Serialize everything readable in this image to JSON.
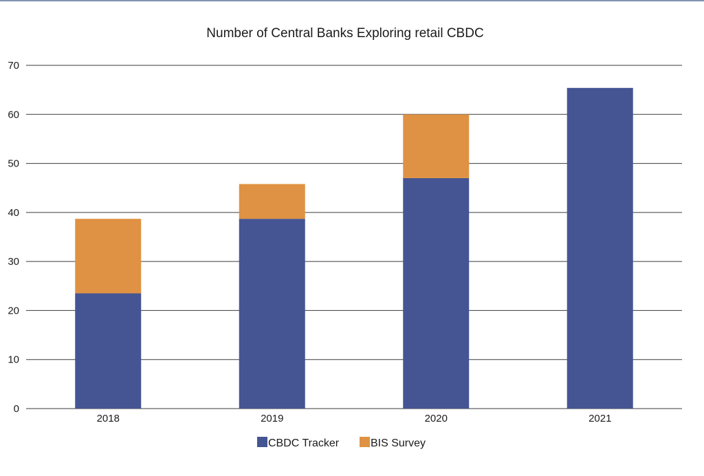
{
  "chart_data": {
    "type": "bar",
    "stacked": true,
    "title": "Number of Central Banks Exploring retail CBDC",
    "xlabel": "",
    "ylabel": "",
    "categories": [
      "2018",
      "2019",
      "2020",
      "2021"
    ],
    "series": [
      {
        "name": "CBDC Tracker",
        "values": [
          23.5,
          38.7,
          47.0,
          65.4
        ],
        "color": "#455593"
      },
      {
        "name": "BIS Survey",
        "values": [
          15.2,
          7.1,
          13.0,
          0
        ],
        "color": "#df9243"
      }
    ],
    "ylim": [
      0,
      70
    ],
    "yticks": [
      0,
      10,
      20,
      30,
      40,
      50,
      60,
      70
    ],
    "grid": true,
    "legend": "bottom-center"
  }
}
